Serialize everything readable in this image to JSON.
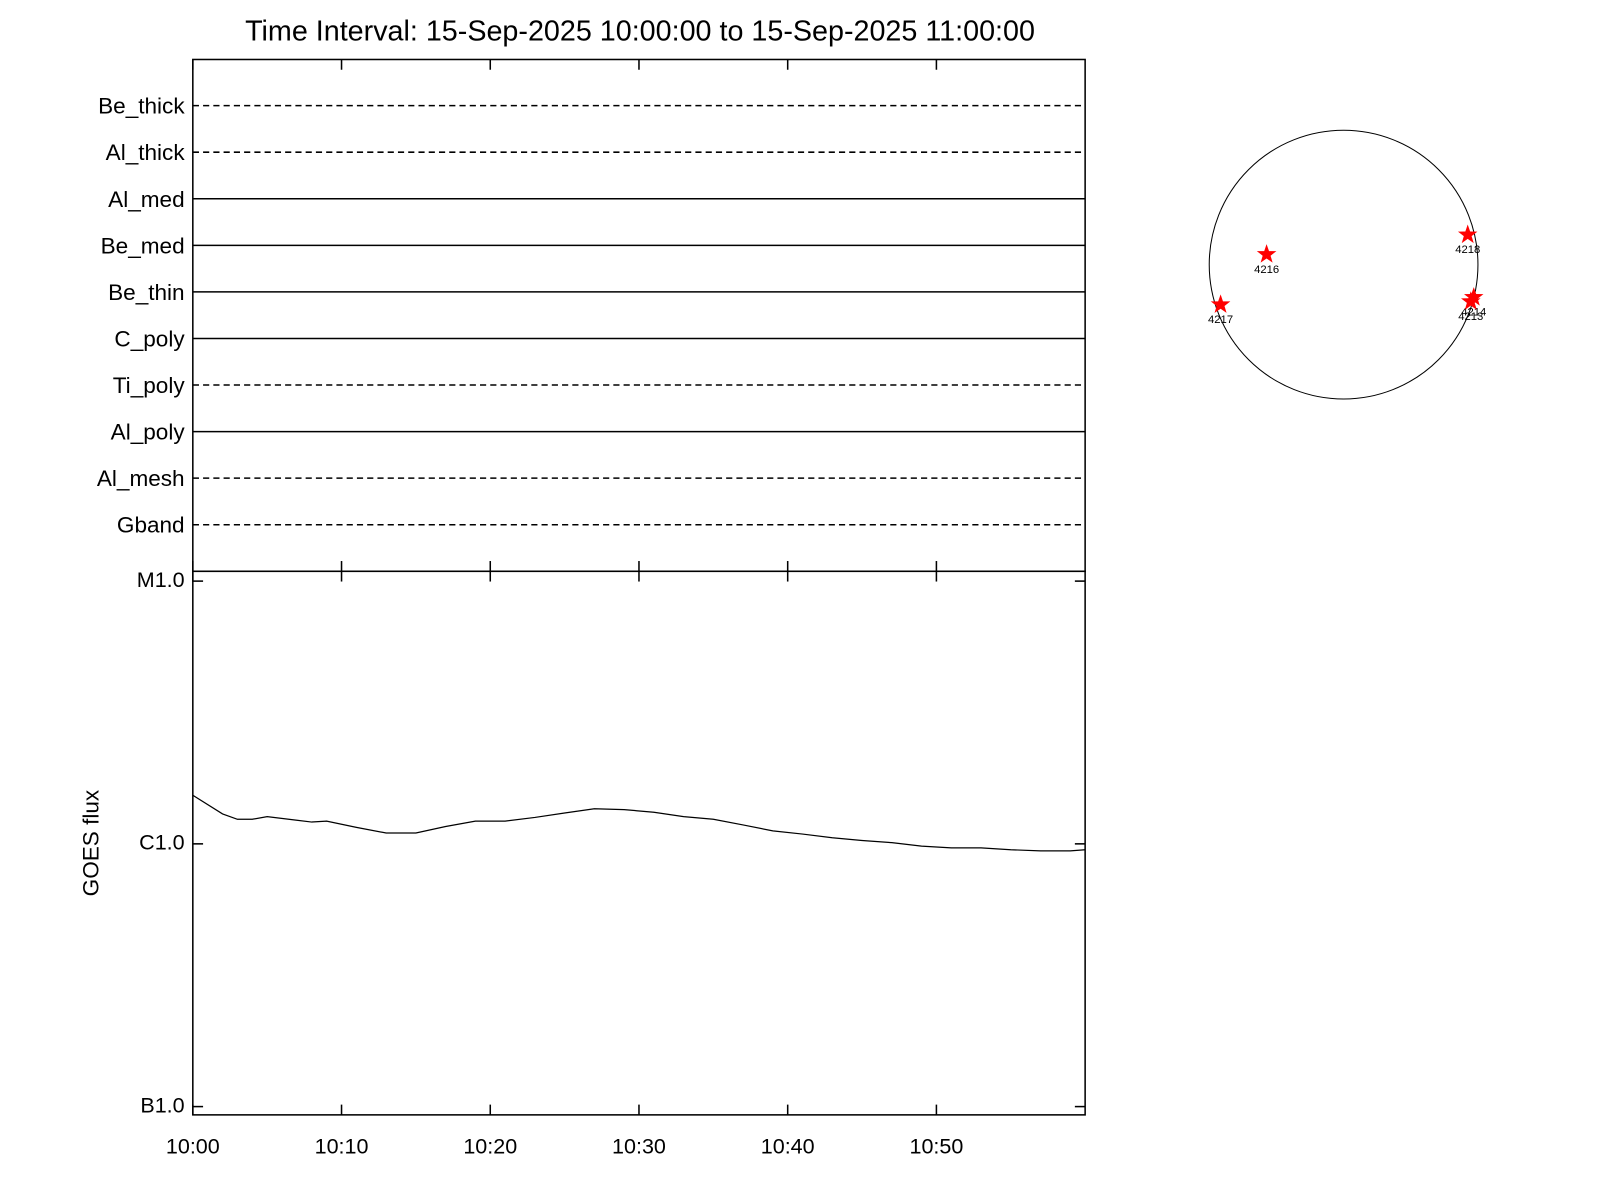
{
  "chart_data": [
    {
      "type": "status",
      "title": "Time Interval: 15-Sep-2025 10:00:00 to 15-Sep-2025 11:00:00",
      "categories": [
        "Be_thick",
        "Al_thick",
        "Al_med",
        "Be_med",
        "Be_thin",
        "C_poly",
        "Ti_poly",
        "Al_poly",
        "Al_mesh",
        "Gband"
      ],
      "styles": [
        "dashed",
        "dashed",
        "solid",
        "solid",
        "solid",
        "solid",
        "dashed",
        "solid",
        "dashed",
        "dashed"
      ],
      "color": "#000000"
    },
    {
      "type": "line",
      "ylabel": "GOES flux",
      "log": true,
      "color": "#000000",
      "x": [
        "10:00",
        "10:02",
        "10:03",
        "10:04",
        "10:05",
        "10:07",
        "10:08",
        "10:09",
        "10:11",
        "10:13",
        "10:15",
        "10:17",
        "10:19",
        "10:21",
        "10:23",
        "10:25",
        "10:27",
        "10:29",
        "10:31",
        "10:33",
        "10:35",
        "10:37",
        "10:39",
        "10:41",
        "10:43",
        "10:45",
        "10:47",
        "10:49",
        "10:51",
        "10:53",
        "10:55",
        "10:57",
        "10:59",
        "11:00"
      ],
      "values": [
        1.53e-06,
        1.3e-06,
        1.24e-06,
        1.24e-06,
        1.27e-06,
        1.23e-06,
        1.21e-06,
        1.22e-06,
        1.155e-06,
        1.1e-06,
        1.1e-06,
        1.165e-06,
        1.22e-06,
        1.22e-06,
        1.26e-06,
        1.31e-06,
        1.36e-06,
        1.35e-06,
        1.32e-06,
        1.27e-06,
        1.24e-06,
        1.18e-06,
        1.12e-06,
        1.09e-06,
        1.055e-06,
        1.03e-06,
        1.01e-06,
        9.8e-07,
        9.65e-07,
        9.65e-07,
        9.5e-07,
        9.4e-07,
        9.4e-07,
        9.5e-07
      ],
      "xlim": [
        "10:00",
        "11:00"
      ],
      "xticks": [
        "10:00",
        "10:10",
        "10:20",
        "10:30",
        "10:40",
        "10:50"
      ],
      "ylim": [
        9.3e-08,
        1.09e-05
      ],
      "yticks": [
        {
          "value": 1e-07,
          "label": "B1.0"
        },
        {
          "value": 1e-06,
          "label": "C1.0"
        },
        {
          "value": 1e-05,
          "label": "M1.0"
        }
      ]
    },
    {
      "type": "scatter",
      "color": "#ff0000",
      "labels": [
        "4216",
        "4218",
        "4217",
        "4214",
        "4213"
      ],
      "x": [
        -550,
        887,
        -879,
        930,
        909
      ],
      "values": [
        73,
        213,
        -286,
        -234,
        -264
      ],
      "xlim": [
        -960,
        960
      ],
      "ylim": [
        -960,
        960
      ]
    }
  ]
}
